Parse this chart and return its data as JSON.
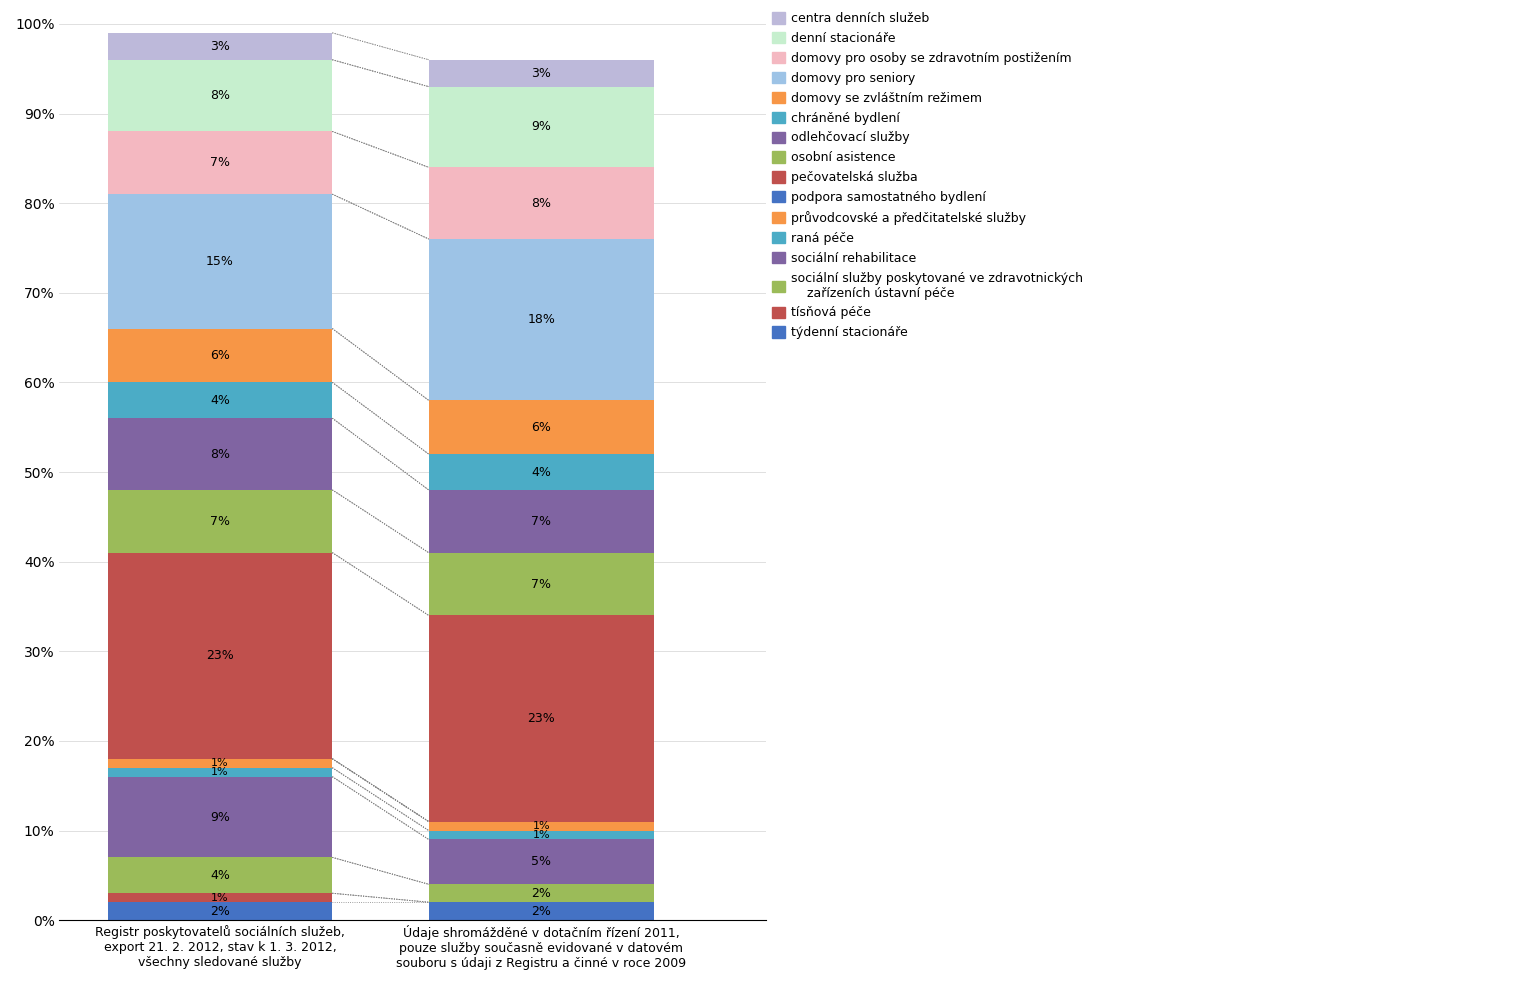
{
  "categories": [
    "Registr poskytovatelů sociálních služeb,\nexport 21. 2. 2012, stav k 1. 3. 2012,\nvšechny sledované služby",
    "Údaje shromážděné v dotačním řízení 2011,\npouze služby současně evidované v datovém\nsouboru s údaji z Registru a činné v roce 2009"
  ],
  "series": [
    {
      "name": "týdenní stacionáře",
      "color": "#4472C4",
      "values": [
        2,
        2
      ]
    },
    {
      "name": "tísňová péče",
      "color": "#C0504D",
      "values": [
        1,
        0
      ]
    },
    {
      "name": "sociální služby poskytované ve zdravotnických\n    zařízeních ústavní péče",
      "color": "#9BBB59",
      "values": [
        4,
        2
      ]
    },
    {
      "name": "sociální rehabilitace",
      "color": "#8064A2",
      "values": [
        9,
        5
      ]
    },
    {
      "name": "raná péče",
      "color": "#4BACC6",
      "values": [
        1,
        1
      ]
    },
    {
      "name": "průvodcovské a předčitatelské služby",
      "color": "#F79646",
      "values": [
        1,
        1
      ]
    },
    {
      "name": "podpora samostatného bydlení",
      "color": "#4472C4",
      "values": [
        0,
        0
      ]
    },
    {
      "name": "pečovatelská služba",
      "color": "#C0504D",
      "values": [
        23,
        23
      ]
    },
    {
      "name": "osobní asistence",
      "color": "#9BBB59",
      "values": [
        7,
        7
      ]
    },
    {
      "name": "odlehčovací služby",
      "color": "#8064A2",
      "values": [
        8,
        7
      ]
    },
    {
      "name": "chráněné bydlení",
      "color": "#4BACC6",
      "values": [
        4,
        4
      ]
    },
    {
      "name": "domovy se zvláštním režimem",
      "color": "#F79646",
      "values": [
        6,
        6
      ]
    },
    {
      "name": "domovy pro seniory",
      "color": "#9DC3E6",
      "values": [
        15,
        18
      ]
    },
    {
      "name": "domovy pro osoby se zdravotním postižením",
      "color": "#F4B8C1",
      "values": [
        7,
        8
      ]
    },
    {
      "name": "denní stacionáře",
      "color": "#C6EFCE",
      "values": [
        8,
        9
      ]
    },
    {
      "name": "centra denních služeb",
      "color": "#BDB9DA",
      "values": [
        3,
        3
      ]
    }
  ],
  "legend_order": [
    15,
    14,
    13,
    12,
    11,
    10,
    9,
    8,
    7,
    6,
    5,
    4,
    3,
    2,
    1,
    0
  ],
  "legend_names": [
    "centra denních služeb",
    "denní stacionáře",
    "domovy pro osoby se zdravotním postižením",
    "domovy pro seniory",
    "domovy se zvláštním režimem",
    "chráněné bydlení",
    "odlehčovací služby",
    "osobní asistence",
    "pečovatelská služba",
    "podpora samostatného bydlení",
    "průvodcovské a předčitatelské služby",
    "raná péče",
    "sociální rehabilitace",
    "sociální služby poskytované ve zdravotnických\n    zařízeních ústavní péče",
    "tísňová péče",
    "týdenní stacionáře"
  ],
  "legend_colors": [
    "#BDB9DA",
    "#C6EFCE",
    "#F4B8C1",
    "#9DC3E6",
    "#F79646",
    "#4BACC6",
    "#8064A2",
    "#9BBB59",
    "#C0504D",
    "#4472C4",
    "#F79646",
    "#4BACC6",
    "#8064A2",
    "#9BBB59",
    "#C0504D",
    "#4472C4"
  ],
  "bar_width": 0.35,
  "figsize": [
    15.25,
    9.85
  ],
  "dpi": 100
}
